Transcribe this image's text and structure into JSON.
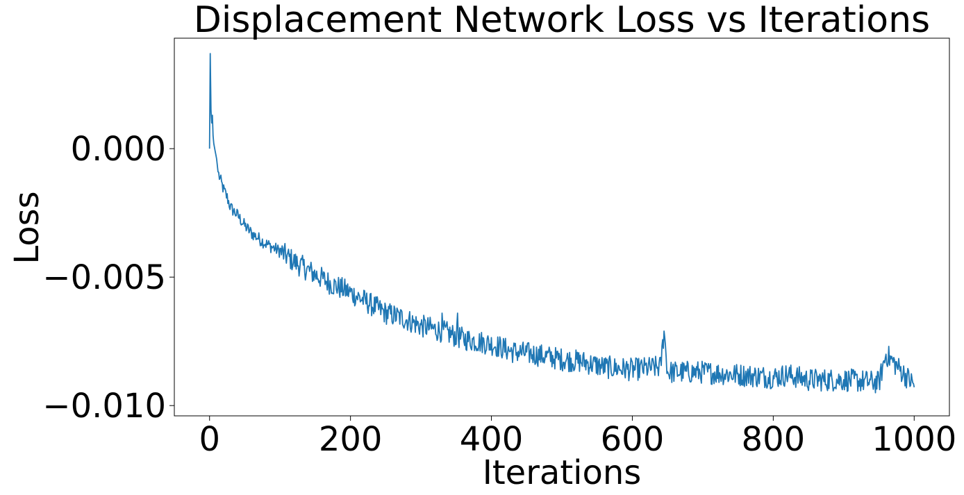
{
  "chart_data": {
    "type": "line",
    "title": "Displacement Network Loss vs Iterations",
    "xlabel": "Iterations",
    "ylabel": "Loss",
    "xlim": [
      -50,
      1050
    ],
    "ylim": [
      -0.0104,
      0.0043
    ],
    "xticks": [
      0,
      200,
      400,
      600,
      800,
      1000
    ],
    "xtick_labels": [
      "0",
      "200",
      "400",
      "600",
      "800",
      "1000"
    ],
    "yticks": [
      0.0,
      -0.005,
      -0.01
    ],
    "ytick_labels": [
      "0.000",
      "−0.005",
      "−0.010"
    ],
    "grid": false,
    "legend": "none",
    "series": [
      {
        "color": "#1f77b4",
        "x": [
          0,
          1,
          2,
          3,
          4,
          5,
          6,
          8,
          10,
          12,
          15,
          20,
          25,
          30,
          40,
          50,
          60,
          70,
          80,
          100,
          120,
          150,
          175,
          200,
          225,
          250,
          275,
          300,
          330,
          360,
          400,
          430,
          460,
          500,
          530,
          560,
          600,
          640,
          645,
          650,
          700,
          750,
          800,
          820,
          850,
          900,
          950,
          960,
          1000
        ],
        "y": [
          0.0,
          0.0037,
          0.0015,
          0.001,
          0.0013,
          0.0005,
          0.0002,
          -0.0001,
          -0.0004,
          -0.0009,
          -0.0012,
          -0.0016,
          -0.0019,
          -0.0023,
          -0.0026,
          -0.003,
          -0.0033,
          -0.0035,
          -0.0037,
          -0.004,
          -0.0044,
          -0.0049,
          -0.0053,
          -0.0056,
          -0.006,
          -0.0064,
          -0.0066,
          -0.0069,
          -0.0071,
          -0.0074,
          -0.0076,
          -0.0079,
          -0.008,
          -0.0082,
          -0.0083,
          -0.0085,
          -0.0086,
          -0.0085,
          -0.0071,
          -0.0087,
          -0.0087,
          -0.0088,
          -0.0089,
          -0.0088,
          -0.009,
          -0.009,
          -0.0091,
          -0.008,
          -0.0092
        ]
      }
    ]
  }
}
